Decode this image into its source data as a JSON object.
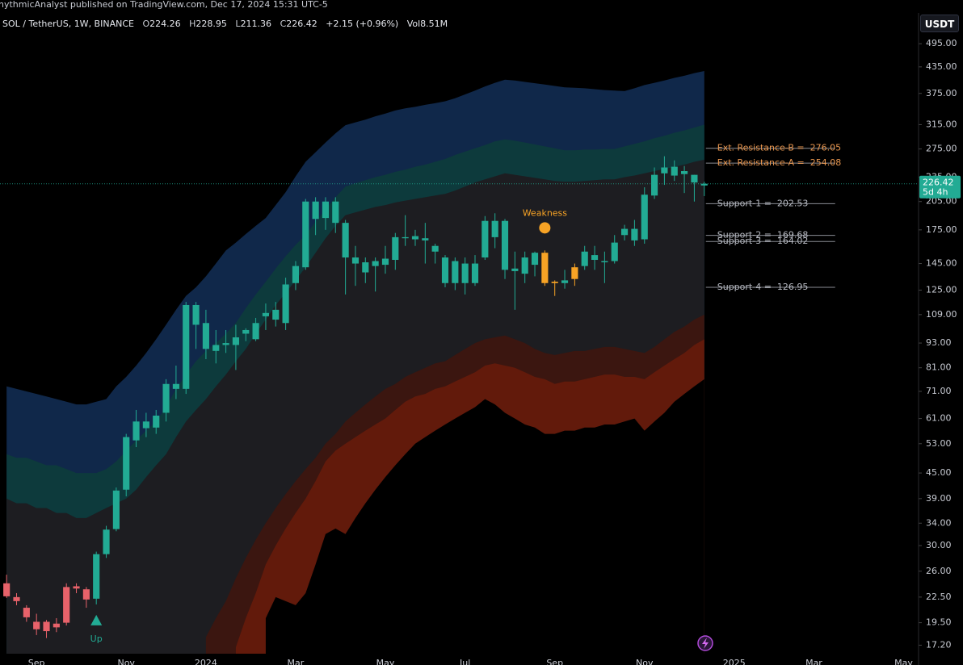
{
  "header": {
    "attribution": "hythmicAnalyst published on TradingView.com, Dec 17, 2024 15:31 UTC-5",
    "symbol": "SOL / TetherUS, 1W, BINANCE",
    "ohlc_letters": [
      "O",
      "H",
      "L",
      "C"
    ],
    "change": "+2.15 (+0.96%)",
    "volume": "Vol8.51M"
  },
  "chart_data": {
    "type": "candlestick",
    "unit": "USDT",
    "log_scale": true,
    "countdown": "5d 4h",
    "ylim": [
      16.4,
      588
    ],
    "yticks": [
      {
        "value": 495,
        "label": "495.00"
      },
      {
        "value": 435,
        "label": "435.00"
      },
      {
        "value": 375,
        "label": "375.00"
      },
      {
        "value": 315,
        "label": "315.00"
      },
      {
        "value": 275,
        "label": "275.00"
      },
      {
        "value": 235,
        "label": "235.00"
      },
      {
        "value": 205,
        "label": "205.00"
      },
      {
        "value": 175,
        "label": "175.00"
      },
      {
        "value": 145,
        "label": "145.00"
      },
      {
        "value": 125,
        "label": "125.00"
      },
      {
        "value": 109,
        "label": "109.00"
      },
      {
        "value": 93,
        "label": "93.00"
      },
      {
        "value": 81,
        "label": "81.00"
      },
      {
        "value": 71,
        "label": "71.00"
      },
      {
        "value": 61,
        "label": "61.00"
      },
      {
        "value": 53,
        "label": "53.00"
      },
      {
        "value": 45,
        "label": "45.00"
      },
      {
        "value": 39,
        "label": "39.00"
      },
      {
        "value": 34,
        "label": "34.00"
      },
      {
        "value": 30,
        "label": "30.00"
      },
      {
        "value": 26,
        "label": "26.00"
      },
      {
        "value": 22.5,
        "label": "22.50"
      },
      {
        "value": 19.5,
        "label": "19.50"
      },
      {
        "value": 17.2,
        "label": "17.20"
      }
    ],
    "categories": [
      null,
      null,
      null,
      "Sep",
      null,
      null,
      null,
      null,
      null,
      null,
      null,
      null,
      "Nov",
      null,
      null,
      null,
      null,
      null,
      null,
      null,
      "2024",
      null,
      null,
      null,
      null,
      null,
      null,
      null,
      null,
      "Mar",
      null,
      null,
      null,
      null,
      null,
      null,
      null,
      null,
      "May",
      null,
      null,
      null,
      null,
      null,
      null,
      null,
      "Jul",
      null,
      null,
      null,
      null,
      null,
      null,
      null,
      null,
      "Sep",
      null,
      null,
      null,
      null,
      null,
      null,
      null,
      null,
      "Nov",
      null,
      null,
      null,
      null,
      null,
      null,
      null,
      null,
      "2025",
      null,
      null,
      null,
      null,
      null,
      null,
      null,
      "Mar",
      null,
      null,
      null,
      null,
      null,
      null,
      null,
      null,
      "May",
      null
    ],
    "open": [
      24.3,
      22.5,
      21.2,
      19.6,
      19.6,
      19.4,
      19.5,
      23.6,
      23.5,
      22.3,
      28.6,
      32.9,
      41,
      54,
      60,
      58,
      63,
      74,
      72,
      115,
      104,
      92,
      92,
      92,
      98,
      95,
      110,
      106,
      104,
      130,
      142,
      205,
      187,
      205,
      182,
      150,
      146,
      143,
      144,
      148,
      167,
      166,
      167,
      160,
      150,
      130,
      145,
      130,
      150,
      184,
      184,
      139,
      150,
      154,
      154,
      130,
      130,
      133,
      143,
      148,
      147,
      147,
      170,
      176,
      166,
      212,
      240,
      249,
      243,
      238,
      224.26,
      null,
      null,
      null,
      null,
      null,
      null,
      null,
      null,
      null,
      null,
      null,
      null,
      null,
      null,
      null,
      null,
      null,
      null,
      null,
      null,
      null
    ],
    "high": [
      25.5,
      23,
      21.5,
      20.5,
      19.8,
      20,
      24.3,
      24.3,
      23.8,
      29,
      33.5,
      41.5,
      56,
      64,
      63,
      64,
      76,
      82,
      117,
      117,
      112,
      100,
      100,
      103,
      101,
      107,
      116,
      117,
      134,
      147,
      208,
      210,
      210,
      210,
      185,
      160,
      150,
      150,
      160,
      172,
      190,
      175,
      182,
      162,
      152,
      150,
      150,
      152,
      189,
      192,
      186,
      155,
      155,
      155,
      156,
      132,
      140,
      145,
      160,
      160,
      155,
      170,
      180,
      185,
      222,
      248,
      264,
      258,
      250,
      238,
      228.95,
      null,
      null,
      null,
      null,
      null,
      null,
      null,
      null,
      null,
      null,
      null,
      null,
      null,
      null,
      null,
      null,
      null,
      null,
      null,
      null,
      null
    ],
    "low": [
      22.4,
      21.5,
      19.6,
      18.2,
      17.9,
      18.5,
      19.2,
      23,
      21.2,
      21.6,
      28,
      32.5,
      39.5,
      52,
      55,
      56,
      60,
      68,
      70,
      90,
      85,
      83,
      88,
      80,
      94,
      94,
      100,
      102,
      100,
      125,
      140,
      170,
      175,
      172,
      122,
      128,
      130,
      124,
      137,
      140,
      160,
      160,
      145,
      145,
      127,
      125,
      122,
      128,
      148,
      158,
      133,
      112,
      130,
      135,
      128,
      121,
      126,
      128,
      140,
      140,
      130,
      145,
      165,
      160,
      162,
      208,
      225,
      230,
      215,
      205,
      211.36,
      null,
      null,
      null,
      null,
      null,
      null,
      null,
      null,
      null,
      null,
      null,
      null,
      null,
      null,
      null,
      null,
      null,
      null,
      null,
      null,
      null
    ],
    "close": [
      22.6,
      22,
      20.1,
      18.8,
      18.6,
      19,
      23.8,
      23.9,
      22.2,
      28.6,
      32.8,
      40.8,
      55,
      60,
      57.8,
      62,
      74,
      72,
      115,
      103,
      90,
      89,
      93,
      96,
      100,
      104,
      108,
      112,
      129,
      143,
      205,
      186,
      205,
      182,
      150,
      145,
      138,
      147,
      149,
      168,
      168,
      169,
      165,
      155,
      130,
      147,
      130,
      145,
      184,
      168,
      140,
      141,
      137,
      144,
      130,
      131,
      132,
      142,
      155,
      152,
      146,
      163,
      176,
      165,
      213,
      238,
      248,
      237,
      239,
      228,
      226.42,
      null,
      null,
      null,
      null,
      null,
      null,
      null,
      null,
      null,
      null,
      null,
      null,
      null,
      null,
      null,
      null,
      null,
      null,
      null,
      null,
      null
    ],
    "colors": [
      "#e8626a",
      "#e8626a",
      "#e8626a",
      "#e8626a",
      "#e8626a",
      "#e8626a",
      "#e8626a",
      "#e8626a",
      "#e8626a",
      "#22ab94",
      "#22ab94",
      "#22ab94",
      "#22ab94",
      "#22ab94",
      "#22ab94",
      "#22ab94",
      "#22ab94",
      "#22ab94",
      "#22ab94",
      "#22ab94",
      "#22ab94",
      "#22ab94",
      "#22ab94",
      "#22ab94",
      "#22ab94",
      "#22ab94",
      "#22ab94",
      "#22ab94",
      "#22ab94",
      "#22ab94",
      "#22ab94",
      "#22ab94",
      "#22ab94",
      "#22ab94",
      "#22ab94",
      "#22ab94",
      "#22ab94",
      "#22ab94",
      "#22ab94",
      "#22ab94",
      "#22ab94",
      "#22ab94",
      "#22ab94",
      "#22ab94",
      "#22ab94",
      "#22ab94",
      "#22ab94",
      "#22ab94",
      "#22ab94",
      "#22ab94",
      "#22ab94",
      "#22ab94",
      "#22ab94",
      "#22ab94",
      "#f7a325",
      "#f7a325",
      "#22ab94",
      "#f7a325",
      "#22ab94",
      "#22ab94",
      "#22ab94",
      "#22ab94",
      "#22ab94",
      "#22ab94",
      "#22ab94",
      "#22ab94",
      "#22ab94",
      "#22ab94",
      "#22ab94",
      "#22ab94",
      "#22ab94",
      null,
      null,
      null,
      null,
      null,
      null,
      null,
      null,
      null,
      null,
      null,
      null,
      null,
      null,
      null,
      null,
      null,
      null,
      null,
      null,
      null
    ],
    "signals": [
      null,
      null,
      null,
      null,
      null,
      null,
      null,
      null,
      null,
      {
        "text": "Up",
        "color": "#22ab94",
        "position": "below"
      },
      null,
      null,
      null,
      null,
      null,
      null,
      null,
      null,
      null,
      null,
      null,
      null,
      null,
      null,
      null,
      null,
      null,
      null,
      null,
      null,
      null,
      null,
      null,
      null,
      null,
      null,
      null,
      null,
      null,
      null,
      null,
      null,
      null,
      null,
      null,
      null,
      null,
      null,
      null,
      null,
      null,
      null,
      null,
      null,
      {
        "text": "Weakness",
        "color": "#f7a325",
        "position": "above"
      },
      null,
      null,
      null,
      null,
      null,
      null,
      null,
      null,
      null,
      null,
      null,
      null,
      null,
      null,
      null,
      null,
      null,
      null,
      null,
      null,
      null,
      null,
      null,
      null,
      null,
      null,
      null,
      null,
      null,
      null,
      null,
      null,
      null,
      null,
      null,
      null
    ],
    "bands": [
      {
        "color": "#10284a",
        "values": [
          73,
          72,
          71,
          70,
          69,
          68,
          67,
          66,
          66,
          67,
          68,
          73,
          77,
          82,
          88,
          95,
          103,
          112,
          121,
          127,
          135,
          145,
          156,
          163,
          171,
          179,
          187,
          201,
          216,
          236,
          256,
          270,
          285,
          300,
          314,
          319,
          324,
          330,
          335,
          341,
          345,
          348,
          352,
          355,
          359,
          365,
          373,
          381,
          390,
          398,
          405,
          403,
          400,
          397,
          394,
          391,
          388,
          387,
          386,
          384,
          382,
          381,
          380,
          386,
          393,
          398,
          403,
          409,
          414,
          420,
          425,
          null,
          null,
          null,
          null,
          null,
          null,
          null,
          null,
          null,
          null,
          null,
          null,
          null,
          null,
          null,
          null,
          null,
          null,
          null,
          null,
          null
        ]
      },
      {
        "color": "#0d3a3c",
        "values": [
          50,
          49,
          49,
          48,
          47,
          47,
          46,
          45,
          45,
          45,
          46,
          48,
          51,
          54,
          57,
          60,
          65,
          72,
          78,
          84,
          89,
          93,
          98,
          104,
          113,
          122,
          131,
          141,
          151,
          161,
          170,
          183,
          196,
          210,
          223,
          227,
          231,
          235,
          238,
          242,
          245,
          249,
          252,
          256,
          260,
          266,
          271,
          276,
          281,
          287,
          290,
          288,
          285,
          282,
          279,
          276,
          273,
          273,
          274,
          274,
          275,
          275,
          279,
          283,
          287,
          292,
          296,
          301,
          305,
          310,
          315,
          null,
          null,
          null,
          null,
          null,
          null,
          null,
          null,
          null,
          null,
          null,
          null,
          null,
          null,
          null,
          null,
          null,
          null,
          null,
          null,
          null
        ]
      },
      {
        "color": "#1d1d21",
        "values": [
          39,
          38,
          38,
          37,
          37,
          36,
          36,
          35,
          35,
          36,
          37,
          38,
          39,
          41,
          44,
          47,
          50,
          55,
          60,
          64,
          68,
          73,
          78,
          84,
          90,
          98,
          106,
          115,
          123,
          132,
          142,
          154,
          167,
          179,
          190,
          193,
          196,
          199,
          201,
          204,
          206,
          208,
          210,
          212,
          214,
          218,
          223,
          228,
          232,
          236,
          240,
          238,
          236,
          234,
          232,
          230,
          229,
          229,
          230,
          231,
          232,
          232,
          235,
          237,
          240,
          243,
          246,
          249,
          252,
          256,
          259,
          null,
          null,
          null,
          null,
          null,
          null,
          null,
          null,
          null,
          null,
          null,
          null,
          null,
          null,
          null,
          null,
          null,
          null,
          null,
          null,
          null
        ]
      },
      {
        "color": "#3b1610",
        "values": [
          null,
          null,
          null,
          null,
          null,
          null,
          null,
          null,
          null,
          null,
          null,
          null,
          null,
          null,
          null,
          null,
          null,
          null,
          null,
          null,
          18,
          20,
          22,
          25,
          28,
          31,
          34,
          37,
          40,
          43,
          46,
          49,
          53,
          56,
          60,
          63,
          66,
          69,
          72,
          74,
          77,
          79,
          81,
          83,
          84,
          87,
          90,
          93,
          95,
          96,
          97,
          95,
          93,
          90,
          88,
          87,
          88,
          89,
          89,
          90,
          91,
          91,
          90,
          89,
          88,
          91,
          95,
          99,
          102,
          106,
          109,
          null,
          null,
          null,
          null,
          null,
          null,
          null,
          null,
          null,
          null,
          null,
          null,
          null,
          null,
          null,
          null,
          null,
          null,
          null,
          null,
          null
        ]
      },
      {
        "color": "#621a0b",
        "values": [
          null,
          null,
          null,
          null,
          null,
          null,
          null,
          null,
          null,
          null,
          null,
          null,
          null,
          null,
          null,
          null,
          null,
          null,
          null,
          null,
          null,
          null,
          null,
          17,
          20,
          23,
          27,
          30,
          33,
          36,
          39,
          43,
          48,
          51,
          53,
          55,
          57,
          59,
          61,
          64,
          67,
          69,
          70,
          72,
          73,
          75,
          77,
          79,
          82,
          83,
          82,
          81,
          79,
          77,
          76,
          74,
          75,
          75,
          76,
          77,
          78,
          78,
          77,
          77,
          76,
          79,
          82,
          85,
          88,
          92,
          95,
          null,
          null,
          null,
          null,
          null,
          null,
          null,
          null,
          null,
          null,
          null,
          null,
          null,
          null,
          null,
          null,
          null,
          null,
          null,
          null,
          null
        ]
      },
      {
        "color": "#000000",
        "values": [
          null,
          null,
          null,
          null,
          null,
          null,
          null,
          null,
          null,
          null,
          null,
          null,
          null,
          null,
          null,
          null,
          null,
          null,
          null,
          null,
          null,
          null,
          null,
          null,
          null,
          null,
          20,
          22.5,
          22,
          21.5,
          23,
          27,
          32,
          33,
          32,
          35,
          38,
          41,
          44,
          47,
          50,
          53,
          55,
          57,
          59,
          61,
          63,
          65,
          68,
          66,
          63,
          61,
          59,
          58,
          56,
          56,
          57,
          57,
          58,
          58,
          59,
          59,
          60,
          61,
          57,
          60,
          63,
          67,
          70,
          73,
          76,
          null,
          null,
          null,
          null,
          null,
          null,
          null,
          null,
          null,
          null,
          null,
          null,
          null,
          null,
          null,
          null,
          null,
          null,
          null,
          null,
          null
        ]
      }
    ],
    "levels": [
      {
        "label": "Ext. Resistance-B =",
        "value": 276.05,
        "color": "#e8964f"
      },
      {
        "label": "Ext. Resistance-A =",
        "value": 254.08,
        "color": "#e8964f"
      },
      {
        "label": "Support-1 =",
        "value": 202.53,
        "color": "#b8bbc3"
      },
      {
        "label": "Support-2 =",
        "value": 169.68,
        "color": "#b8bbc3"
      },
      {
        "label": "Support-3 =",
        "value": 164.02,
        "color": "#b8bbc3"
      },
      {
        "label": "Support-4 =",
        "value": 126.95,
        "color": "#b8bbc3"
      }
    ],
    "price_color": "#22ab94"
  }
}
